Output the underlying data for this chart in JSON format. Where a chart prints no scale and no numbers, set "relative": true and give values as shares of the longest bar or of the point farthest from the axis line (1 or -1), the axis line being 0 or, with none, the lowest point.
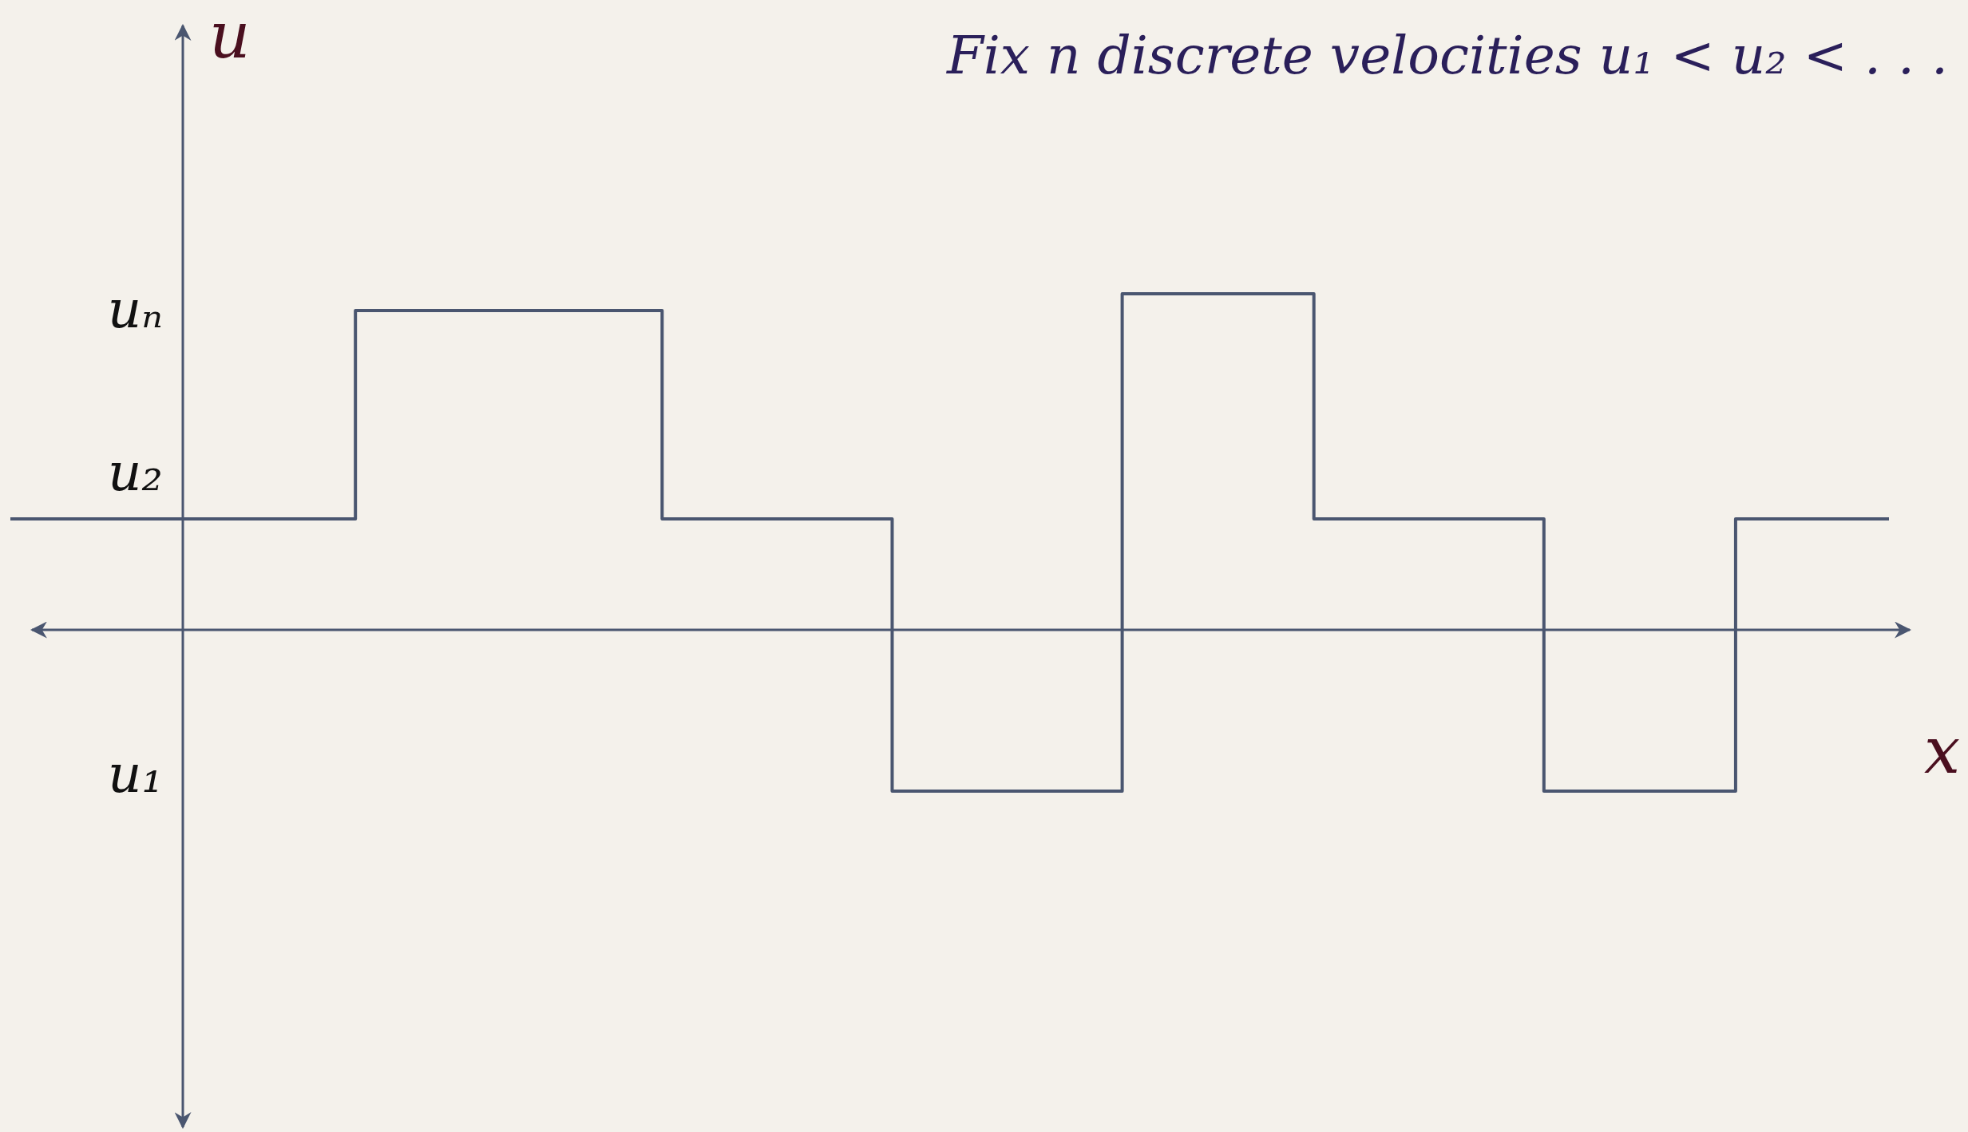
{
  "chart_data": {
    "type": "step",
    "title": "Fix n discrete velocities u₁ < u₂ < . . .",
    "xlabel": "x",
    "ylabel": "u",
    "relative": true,
    "categories": [
      null,
      null,
      null,
      null,
      null,
      null,
      null,
      null,
      null,
      null,
      null,
      null,
      null,
      null,
      null,
      null,
      null,
      null,
      null,
      null,
      null,
      null,
      null,
      null,
      null,
      null,
      null,
      null,
      null,
      null,
      null,
      null,
      null,
      null,
      null,
      null,
      null,
      null,
      null,
      null,
      null,
      null,
      null,
      null,
      null,
      null,
      null,
      null,
      null,
      null
    ],
    "series": [
      {
        "color": "#4a5670",
        "values": [
          0.33,
          0.33,
          0.33,
          0.33,
          0.33,
          0.33,
          0.33,
          0.33,
          0.33,
          0.95,
          0.95,
          0.95,
          0.95,
          0.95,
          0.95,
          0.95,
          0.95,
          0.33,
          0.33,
          0.33,
          0.33,
          0.33,
          0.33,
          -0.48,
          -0.48,
          -0.48,
          -0.48,
          -0.48,
          -0.48,
          1,
          1,
          1,
          1,
          1,
          0.33,
          0.33,
          0.33,
          0.33,
          0.33,
          0.33,
          -0.48,
          -0.48,
          -0.48,
          -0.48,
          -0.48,
          0.33,
          0.33,
          0.33,
          0.33,
          0.33
        ]
      }
    ],
    "annotations": [
      "uₙ",
      "u₂",
      "u₁"
    ]
  }
}
